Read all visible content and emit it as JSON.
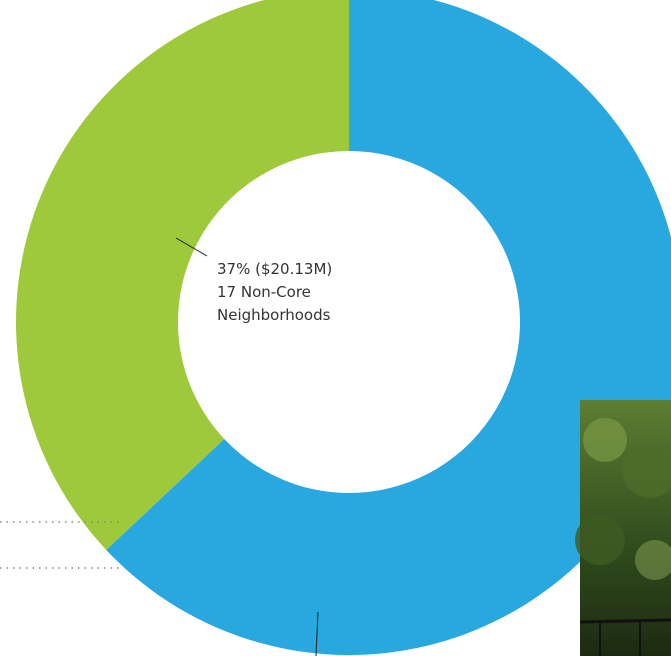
{
  "chart_data": {
    "type": "donut",
    "categories": [
      "17 Non-Core Neighborhoods",
      null
    ],
    "values": [
      37,
      63
    ],
    "value_labels": [
      "37% ($20.13M)",
      null
    ],
    "colors": [
      "#9dc93b",
      "#29a8e0"
    ]
  }
}
